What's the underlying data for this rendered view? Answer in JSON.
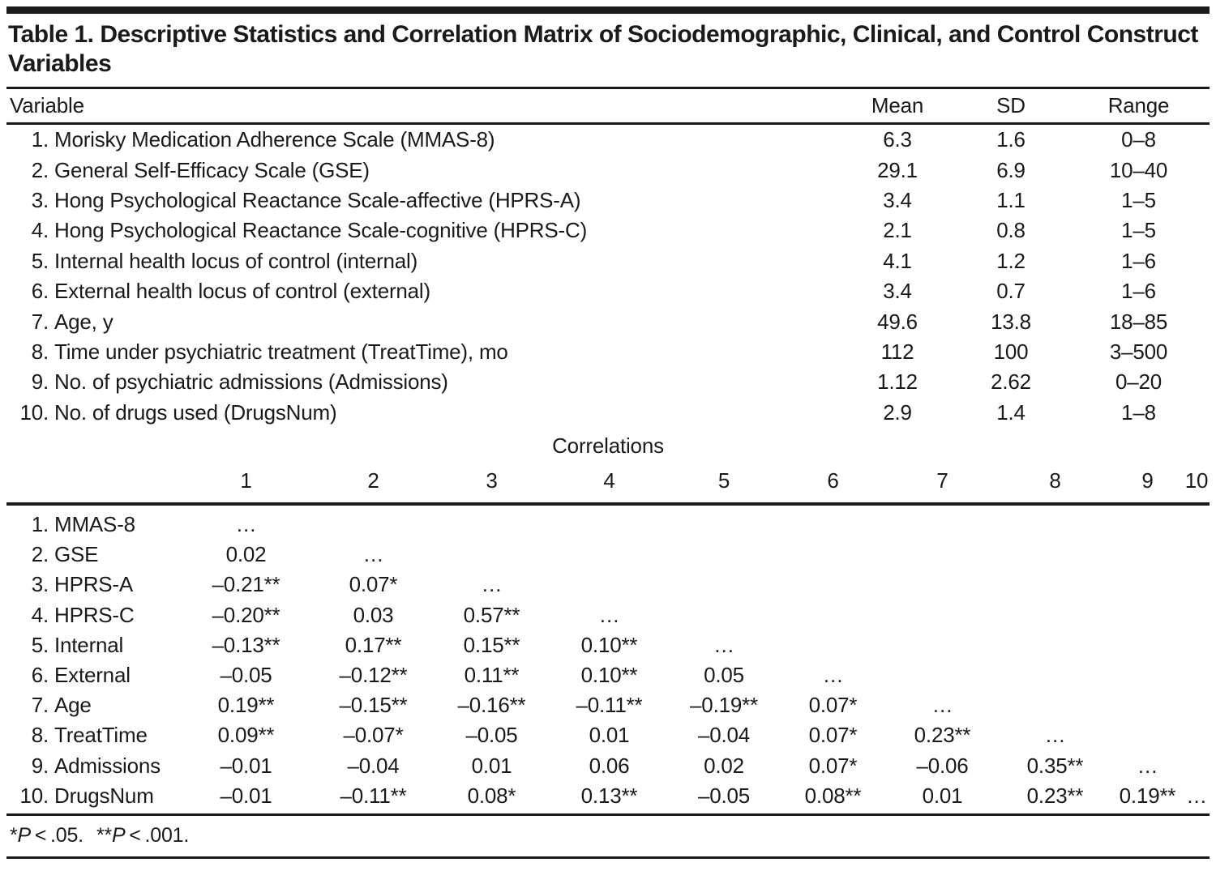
{
  "title": "Table 1. Descriptive Statistics and Correlation Matrix of Sociodemographic, Clinical, and Control Construct Variables",
  "descriptives": {
    "headers": {
      "variable": "Variable",
      "mean": "Mean",
      "sd": "SD",
      "range": "Range"
    },
    "rows": [
      {
        "num": "1.",
        "label": "Morisky Medication Adherence Scale (MMAS-8)",
        "mean": "6.3",
        "sd": "1.6",
        "range": "0–8"
      },
      {
        "num": "2.",
        "label": "General Self-Efficacy Scale (GSE)",
        "mean": "29.1",
        "sd": "6.9",
        "range": "10–40"
      },
      {
        "num": "3.",
        "label": "Hong Psychological Reactance Scale-affective (HPRS-A)",
        "mean": "3.4",
        "sd": "1.1",
        "range": "1–5"
      },
      {
        "num": "4.",
        "label": "Hong Psychological Reactance Scale-cognitive (HPRS-C)",
        "mean": "2.1",
        "sd": "0.8",
        "range": "1–5"
      },
      {
        "num": "5.",
        "label": "Internal health locus of control (internal)",
        "mean": "4.1",
        "sd": "1.2",
        "range": "1–6"
      },
      {
        "num": "6.",
        "label": "External health locus of control (external)",
        "mean": "3.4",
        "sd": "0.7",
        "range": "1–6"
      },
      {
        "num": "7.",
        "label": "Age, y",
        "mean": "49.6",
        "sd": "13.8",
        "range": "18–85"
      },
      {
        "num": "8.",
        "label": "Time under psychiatric treatment (TreatTime), mo",
        "mean": "112",
        "sd": "100",
        "range": "3–500"
      },
      {
        "num": "9.",
        "label": "No. of psychiatric admissions (Admissions)",
        "mean": "1.12",
        "sd": "2.62",
        "range": "0–20"
      },
      {
        "num": "10.",
        "label": "No. of drugs used (DrugsNum)",
        "mean": "2.9",
        "sd": "1.4",
        "range": "1–8"
      }
    ]
  },
  "correlations": {
    "section_title": "Correlations",
    "col_headers": [
      "1",
      "2",
      "3",
      "4",
      "5",
      "6",
      "7",
      "8",
      "9",
      "10"
    ],
    "rows": [
      {
        "num": "1.",
        "label": "MMAS-8",
        "values": [
          "…",
          "",
          "",
          "",
          "",
          "",
          "",
          "",
          "",
          ""
        ]
      },
      {
        "num": "2.",
        "label": "GSE",
        "values": [
          "0.02",
          "…",
          "",
          "",
          "",
          "",
          "",
          "",
          "",
          ""
        ]
      },
      {
        "num": "3.",
        "label": "HPRS-A",
        "values": [
          "–0.21**",
          "0.07*",
          "…",
          "",
          "",
          "",
          "",
          "",
          "",
          ""
        ]
      },
      {
        "num": "4.",
        "label": "HPRS-C",
        "values": [
          "–0.20**",
          "0.03",
          "0.57**",
          "…",
          "",
          "",
          "",
          "",
          "",
          ""
        ]
      },
      {
        "num": "5.",
        "label": "Internal",
        "values": [
          "–0.13**",
          "0.17**",
          "0.15**",
          "0.10**",
          "…",
          "",
          "",
          "",
          "",
          ""
        ]
      },
      {
        "num": "6.",
        "label": "External",
        "values": [
          "–0.05",
          "–0.12**",
          "0.11**",
          "0.10**",
          "0.05",
          "…",
          "",
          "",
          "",
          ""
        ]
      },
      {
        "num": "7.",
        "label": "Age",
        "values": [
          "0.19**",
          "–0.15**",
          "–0.16**",
          "–0.11**",
          "–0.19**",
          "0.07*",
          "…",
          "",
          "",
          ""
        ]
      },
      {
        "num": "8.",
        "label": "TreatTime",
        "values": [
          "0.09**",
          "–0.07*",
          "–0.05",
          "0.01",
          "–0.04",
          "0.07*",
          "0.23**",
          "…",
          "",
          ""
        ]
      },
      {
        "num": "9.",
        "label": "Admissions",
        "values": [
          "–0.01",
          "–0.04",
          "0.01",
          "0.06",
          "0.02",
          "0.07*",
          "–0.06",
          "0.35**",
          "…",
          ""
        ]
      },
      {
        "num": "10.",
        "label": "DrugsNum",
        "values": [
          "–0.01",
          "–0.11**",
          "0.08*",
          "0.13**",
          "–0.05",
          "0.08**",
          "0.01",
          "0.23**",
          "0.19**",
          "…"
        ]
      }
    ]
  },
  "footnote": {
    "star1": "*",
    "p1": "P",
    "lt1": " < .05.",
    "star2": "**",
    "p2": "P",
    "lt2": " < .001."
  }
}
